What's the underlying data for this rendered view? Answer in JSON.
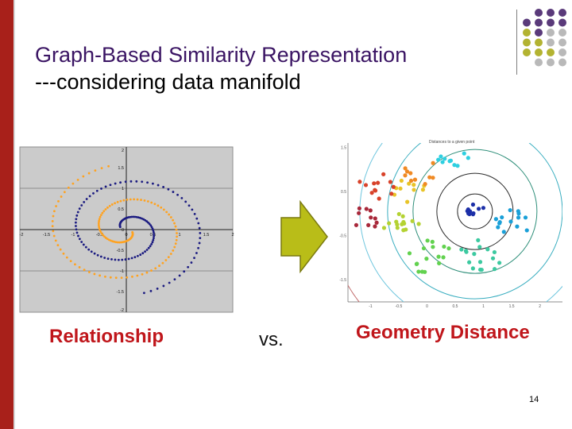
{
  "slide": {
    "title_line1": "Graph-Based Similarity Representation",
    "title_line2": "---considering data manifold",
    "label_left": "Relationship",
    "label_middle": "vs.",
    "label_right": "Geometry Distance",
    "page_number": "14"
  },
  "colors": {
    "accent_bar": "#a8201a",
    "title": "#3a1463",
    "label": "#c0161b",
    "arrow_fill": "#b9bd18",
    "dot_purple": "#5a3a7a",
    "dot_olive": "#b3b331",
    "dot_gray": "#b9b9b9"
  },
  "spiral_plot": {
    "x_ticks": [
      "-2",
      "-1.5",
      "-1",
      "-0.5",
      "0",
      "0.5",
      "1",
      "1.5",
      "2"
    ],
    "y_ticks": [
      "2",
      "1.5",
      "1",
      "0.5",
      "0",
      "-0.5",
      "-1",
      "-1.5",
      "-2"
    ],
    "series": [
      {
        "color": "#1a1a80"
      },
      {
        "color": "#ffa21f"
      }
    ]
  },
  "manifold_plot": {
    "title": "Distances to a given point",
    "x_ticks": [
      "-1",
      "-0.5",
      "0",
      "0.5",
      "1",
      "1.5",
      "2"
    ],
    "y_ticks": [
      "1.5",
      "0.5",
      "-0.5",
      "-1.5"
    ]
  }
}
